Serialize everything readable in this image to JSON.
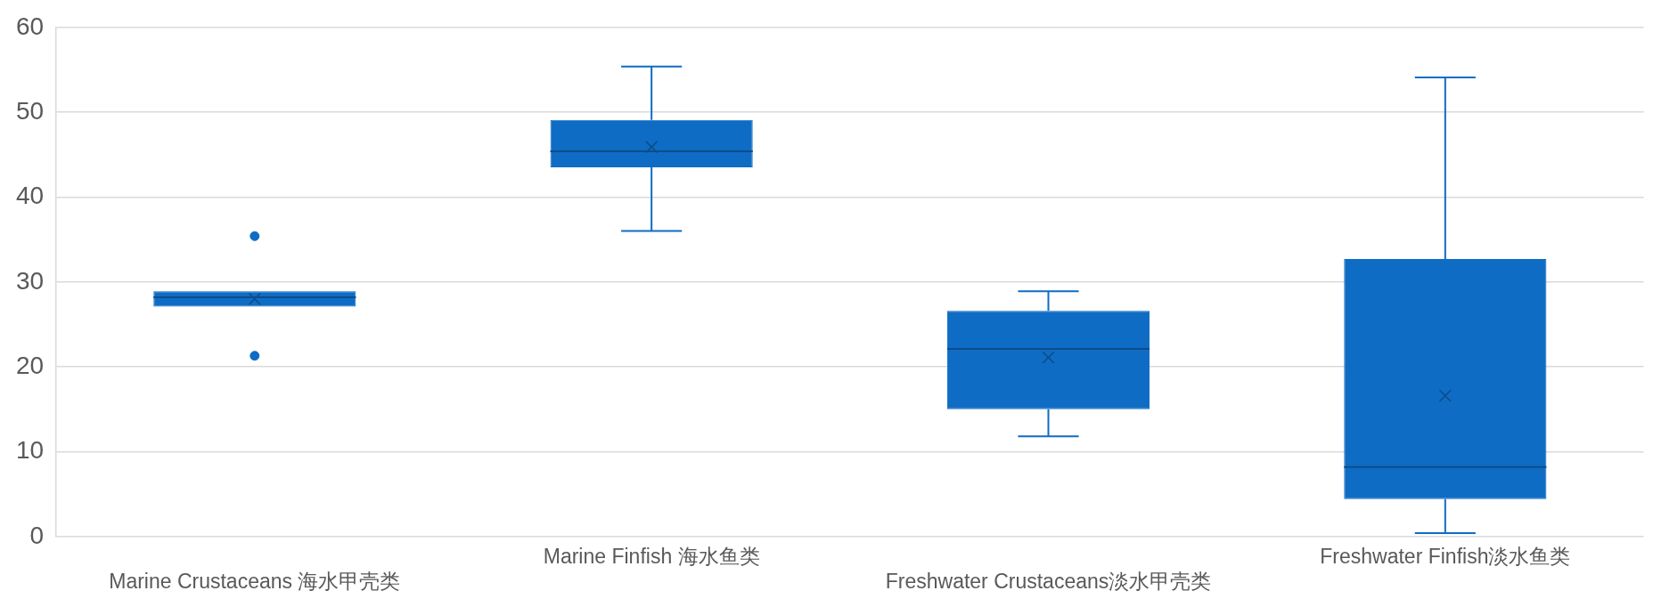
{
  "chart_data": {
    "type": "box",
    "categories": [
      "Marine Crustaceans 海水甲壳类",
      "Marine Finfish 海水鱼类",
      "Freshwater Crustaceans淡水甲壳类",
      "Freshwater Finfish淡水鱼类"
    ],
    "color": "#0f6cc4",
    "boxes": [
      {
        "low": 27.1,
        "q1": 27.1,
        "median": 28.2,
        "q3": 28.9,
        "high": 28.9,
        "mean": 28.0,
        "outliers": [
          35.4,
          21.3
        ]
      },
      {
        "low": 36.0,
        "q1": 43.5,
        "median": 45.4,
        "q3": 49.1,
        "high": 55.4,
        "mean": 45.9
      },
      {
        "low": 11.8,
        "q1": 15.0,
        "median": 22.1,
        "q3": 26.6,
        "high": 28.9,
        "mean": 21.1
      },
      {
        "low": 0.4,
        "q1": 4.4,
        "median": 8.2,
        "q3": 32.7,
        "high": 54.1,
        "mean": 16.6
      }
    ],
    "ylim": [
      0,
      60
    ],
    "yticks": [
      0,
      10,
      20,
      30,
      40,
      50,
      60
    ],
    "grid": "y",
    "legend": false
  }
}
